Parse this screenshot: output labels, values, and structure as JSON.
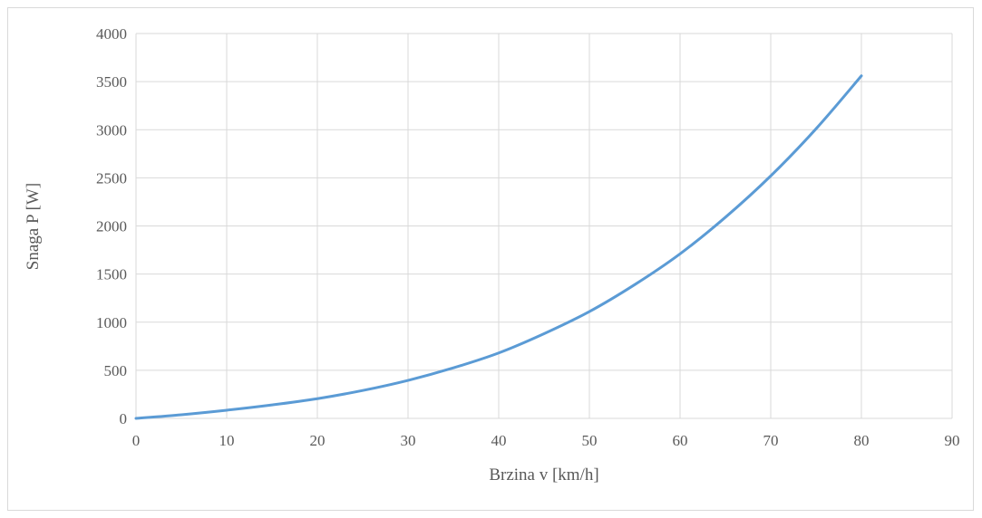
{
  "chart_data": {
    "type": "line",
    "title": "",
    "xlabel": "Brzina v [km/h]",
    "ylabel": "Snaga P [W]",
    "xlim": [
      0,
      90
    ],
    "ylim": [
      0,
      4000
    ],
    "x_ticks": [
      0,
      10,
      20,
      30,
      40,
      50,
      60,
      70,
      80,
      90
    ],
    "y_ticks": [
      0,
      500,
      1000,
      1500,
      2000,
      2500,
      3000,
      3500,
      4000
    ],
    "grid": true,
    "legend": "none",
    "series": [
      {
        "color": "#5b9bd5",
        "x": [
          0,
          5,
          10,
          15,
          20,
          25,
          30,
          35,
          40,
          45,
          50,
          55,
          60,
          65,
          70,
          75,
          80
        ],
        "y": [
          0,
          38,
          85,
          140,
          205,
          290,
          395,
          525,
          680,
          880,
          1110,
          1390,
          1710,
          2090,
          2520,
          3010,
          3560
        ]
      }
    ]
  }
}
